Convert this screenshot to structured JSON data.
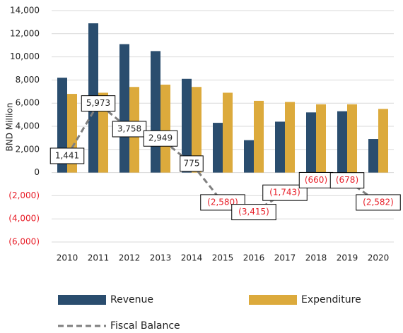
{
  "chart_data": {
    "type": "bar_line",
    "y_axis_label": "BND Million",
    "categories": [
      "2010",
      "2011",
      "2012",
      "2013",
      "2014",
      "2015",
      "2016",
      "2017",
      "2018",
      "2019",
      "2020"
    ],
    "series": [
      {
        "name": "Revenue",
        "type": "bar",
        "color": "#2a4d6e",
        "values": [
          8200,
          12900,
          11100,
          10500,
          8100,
          4300,
          2800,
          4400,
          5200,
          5300,
          2900
        ]
      },
      {
        "name": "Expenditure",
        "type": "bar",
        "color": "#dcaa3c",
        "values": [
          6800,
          6900,
          7400,
          7600,
          7400,
          6900,
          6200,
          6100,
          5900,
          5900,
          5500
        ]
      },
      {
        "name": "Fiscal Balance",
        "type": "line",
        "color": "#7f7f7f",
        "values": [
          1441,
          5973,
          3758,
          2949,
          775,
          -2580,
          -3415,
          -1743,
          -660,
          -678,
          -2582
        ],
        "value_labels": [
          "1,441",
          "5,973",
          "3,758",
          "2,949",
          "775",
          "(2,580)",
          "(3,415)",
          "(1,743)",
          "(660)",
          "(678)",
          "(2,582)"
        ]
      }
    ],
    "ylim": [
      -6000,
      14000
    ],
    "yticks": [
      {
        "value": 14000,
        "label": "14,000"
      },
      {
        "value": 12000,
        "label": "12,000"
      },
      {
        "value": 10000,
        "label": "10,000"
      },
      {
        "value": 8000,
        "label": "8,000"
      },
      {
        "value": 6000,
        "label": "6,000"
      },
      {
        "value": 4000,
        "label": "4,000"
      },
      {
        "value": 2000,
        "label": "2,000"
      },
      0,
      {
        "value": -2000,
        "label": "(2,000)"
      },
      {
        "value": -4000,
        "label": "(4,000)"
      },
      {
        "value": -6000,
        "label": "(6,000)"
      }
    ],
    "grid": true
  }
}
